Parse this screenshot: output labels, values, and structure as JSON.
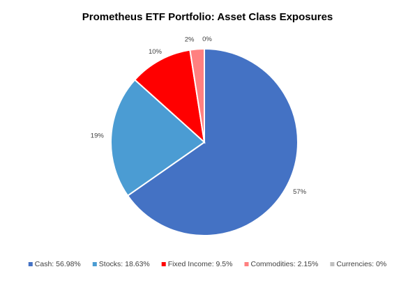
{
  "chart_data": {
    "type": "pie",
    "title": "Prometheus ETF Portfolio: Asset Class Exposures",
    "categories": [
      "Cash",
      "Stocks",
      "Fixed Income",
      "Commodities",
      "Currencies"
    ],
    "values": [
      56.98,
      18.63,
      9.5,
      2.15,
      0
    ],
    "data_labels": [
      "57%",
      "19%",
      "10%",
      "2%",
      "0%"
    ],
    "legend_entries": [
      "Cash: 56.98%",
      "Stocks: 18.63%",
      "Fixed Income: 9.5%",
      "Commodities: 2.15%",
      "Currencies: 0%"
    ],
    "colors": [
      "#4472C4",
      "#4B9CD3",
      "#FF0000",
      "#FF8080",
      "#BFBFBF"
    ],
    "start_angle_deg": 0,
    "direction": "clockwise",
    "legend_position": "bottom"
  }
}
